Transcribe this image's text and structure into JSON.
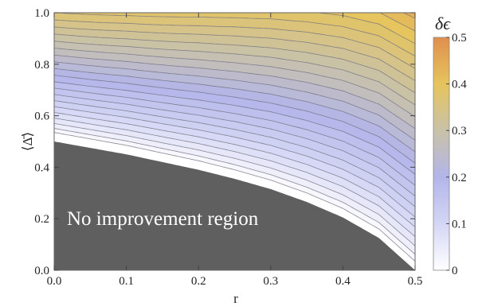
{
  "chart_data": {
    "type": "contour",
    "x": {
      "label": "r",
      "lim": [
        0.0,
        0.5
      ],
      "ticks": [
        "0.0",
        "0.1",
        "0.2",
        "0.3",
        "0.4",
        "0.5"
      ]
    },
    "y": {
      "label": "⟨Δ̄⟩",
      "lim": [
        0.0,
        1.0
      ],
      "ticks": [
        "0.0",
        "0.2",
        "0.4",
        "0.6",
        "0.8",
        "1.0"
      ]
    },
    "region_label": "No improvement region",
    "boundary": {
      "r": [
        0.0,
        0.05,
        0.1,
        0.15,
        0.2,
        0.25,
        0.3,
        0.35,
        0.4,
        0.45,
        0.5
      ],
      "delta": [
        0.5,
        0.475,
        0.45,
        0.42,
        0.39,
        0.355,
        0.315,
        0.265,
        0.205,
        0.125,
        0.0
      ]
    },
    "contour_levels": 25,
    "colorbar": {
      "title": "δϵ",
      "lim": [
        0,
        0.5
      ],
      "ticks": [
        "0",
        "0.1",
        "0.2",
        "0.3",
        "0.4",
        "0.5"
      ]
    },
    "colors": {
      "region_fill": "#5f5f5f",
      "scale": [
        "#ffffff",
        "#d4d6f5",
        "#b3b5ea",
        "#c9c2a8",
        "#e6c45d",
        "#e08f4f"
      ]
    }
  }
}
